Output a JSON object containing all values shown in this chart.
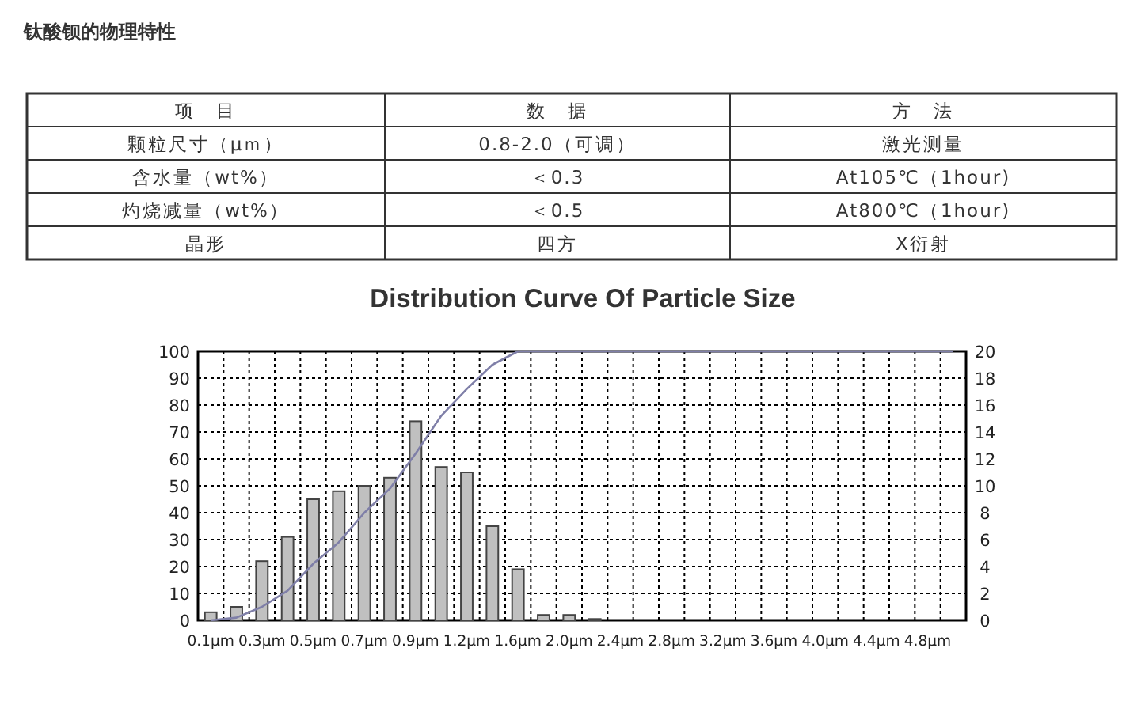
{
  "chart_data": {
    "type": "bar",
    "title": "Distribution Curve Of Particle Size",
    "annotations": [
      "钛酸钡的物理特性",
      "项　目",
      "数　据",
      "方　法",
      "颗粒尺寸（μｍ）",
      "0.8-2.0（可调）",
      "激光测量",
      "含水量（wt%）",
      "＜0.3",
      "At105℃（1hour)",
      "灼烧减量（wt%）",
      "＜0.5",
      "At800℃（1hour)",
      "晶形",
      "四方",
      "X衍射"
    ],
    "categories": [
      "0.1μm",
      null,
      "0.3μm",
      null,
      "0.5μm",
      null,
      "0.7μm",
      null,
      "0.9μm",
      null,
      "1.2μm",
      null,
      "1.6μm",
      null,
      "2.0μm",
      null,
      "2.4μm",
      null,
      "2.8μm",
      null,
      "3.2μm",
      null,
      "3.6μm",
      null,
      "4.0μm",
      null,
      "4.4μm",
      null,
      "4.8μm",
      null
    ],
    "series": [
      {
        "axis": "y2",
        "color": "#c0c0c0",
        "values": [
          0.6,
          1,
          4.4,
          6.2,
          9,
          9.6,
          10,
          10.6,
          14.8,
          11.4,
          11,
          7,
          3.8,
          0.4,
          0.4,
          0.1,
          0,
          0,
          0,
          0,
          0,
          0,
          0,
          0,
          0,
          0,
          0,
          0,
          0,
          0
        ]
      },
      {
        "type": "line",
        "axis": "y",
        "color": "#7f7fa8",
        "values": [
          0,
          1,
          5,
          11,
          21,
          29,
          40,
          49,
          62,
          76,
          86,
          95,
          100,
          100,
          100,
          100,
          100,
          100,
          100,
          100,
          100,
          100,
          100,
          100,
          100,
          100,
          100,
          100,
          100,
          100
        ]
      }
    ],
    "ylim": [
      0,
      100
    ],
    "yticks": [
      0,
      10,
      20,
      30,
      40,
      50,
      60,
      70,
      80,
      90,
      100
    ],
    "y2lim": [
      0,
      20
    ],
    "y2ticks": [
      0,
      2,
      4,
      6,
      8,
      10,
      12,
      14,
      16,
      18,
      20
    ],
    "grid": true
  }
}
